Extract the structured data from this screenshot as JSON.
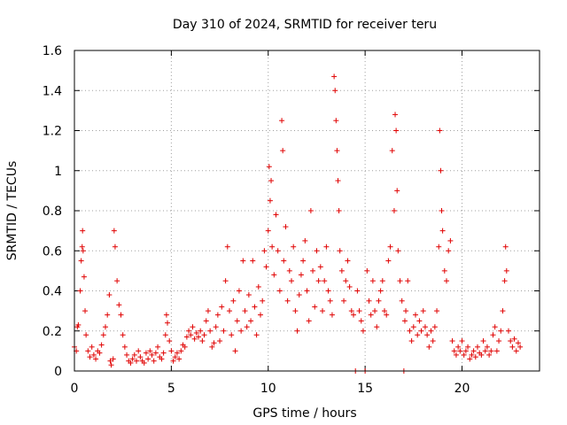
{
  "chart_data": {
    "type": "scatter",
    "title": "Day 310 of 2024, SRMTID for receiver teru",
    "xlabel": "GPS time / hours",
    "ylabel": "SRMTID / TECUs",
    "xlim": [
      0,
      24
    ],
    "ylim": [
      0,
      1.6
    ],
    "grid": true,
    "x_ticks": [
      {
        "value": 0,
        "label": "0"
      },
      {
        "value": 5,
        "label": "5"
      },
      {
        "value": 10,
        "label": "10"
      },
      {
        "value": 15,
        "label": "15"
      },
      {
        "value": 20,
        "label": "20"
      }
    ],
    "y_ticks": [
      {
        "value": 0,
        "label": "0"
      },
      {
        "value": 0.2,
        "label": "0.2"
      },
      {
        "value": 0.4,
        "label": "0.4"
      },
      {
        "value": 0.6,
        "label": "0.6"
      },
      {
        "value": 0.8,
        "label": "0.8"
      },
      {
        "value": 1.0,
        "label": "1"
      },
      {
        "value": 1.2,
        "label": "1.2"
      },
      {
        "value": 1.4,
        "label": "1.4"
      },
      {
        "value": 1.6,
        "label": "1.6"
      }
    ],
    "marker_color": "#e00000",
    "series": [
      {
        "name": "SRMTID",
        "points": [
          [
            0.0,
            0.12
          ],
          [
            0.1,
            0.1
          ],
          [
            0.15,
            0.22
          ],
          [
            0.2,
            0.23
          ],
          [
            0.3,
            0.4
          ],
          [
            0.35,
            0.55
          ],
          [
            0.4,
            0.62
          ],
          [
            0.42,
            0.7
          ],
          [
            0.45,
            0.6
          ],
          [
            0.5,
            0.47
          ],
          [
            0.55,
            0.3
          ],
          [
            0.6,
            0.18
          ],
          [
            0.7,
            0.1
          ],
          [
            0.8,
            0.07
          ],
          [
            0.9,
            0.12
          ],
          [
            1.0,
            0.08
          ],
          [
            1.1,
            0.06
          ],
          [
            1.2,
            0.1
          ],
          [
            1.3,
            0.09
          ],
          [
            1.4,
            0.13
          ],
          [
            1.5,
            0.18
          ],
          [
            1.6,
            0.22
          ],
          [
            1.7,
            0.28
          ],
          [
            1.8,
            0.38
          ],
          [
            1.85,
            0.05
          ],
          [
            1.9,
            0.03
          ],
          [
            2.0,
            0.06
          ],
          [
            2.05,
            0.7
          ],
          [
            2.1,
            0.62
          ],
          [
            2.2,
            0.45
          ],
          [
            2.3,
            0.33
          ],
          [
            2.4,
            0.28
          ],
          [
            2.5,
            0.18
          ],
          [
            2.6,
            0.12
          ],
          [
            2.7,
            0.08
          ],
          [
            2.8,
            0.05
          ],
          [
            2.9,
            0.04
          ],
          [
            3.0,
            0.06
          ],
          [
            3.1,
            0.08
          ],
          [
            3.2,
            0.05
          ],
          [
            3.3,
            0.1
          ],
          [
            3.4,
            0.07
          ],
          [
            3.5,
            0.05
          ],
          [
            3.6,
            0.04
          ],
          [
            3.7,
            0.09
          ],
          [
            3.8,
            0.06
          ],
          [
            3.9,
            0.1
          ],
          [
            4.0,
            0.08
          ],
          [
            4.1,
            0.05
          ],
          [
            4.2,
            0.09
          ],
          [
            4.3,
            0.12
          ],
          [
            4.4,
            0.07
          ],
          [
            4.5,
            0.06
          ],
          [
            4.6,
            0.09
          ],
          [
            4.7,
            0.18
          ],
          [
            4.75,
            0.28
          ],
          [
            4.8,
            0.24
          ],
          [
            4.9,
            0.15
          ],
          [
            5.0,
            0.1
          ],
          [
            5.1,
            0.05
          ],
          [
            5.2,
            0.07
          ],
          [
            5.3,
            0.09
          ],
          [
            5.4,
            0.06
          ],
          [
            5.5,
            0.1
          ],
          [
            5.6,
            0.13
          ],
          [
            5.7,
            0.12
          ],
          [
            5.8,
            0.17
          ],
          [
            5.9,
            0.2
          ],
          [
            6.0,
            0.18
          ],
          [
            6.1,
            0.22
          ],
          [
            6.2,
            0.16
          ],
          [
            6.3,
            0.19
          ],
          [
            6.4,
            0.17
          ],
          [
            6.5,
            0.2
          ],
          [
            6.6,
            0.15
          ],
          [
            6.7,
            0.18
          ],
          [
            6.8,
            0.25
          ],
          [
            6.9,
            0.3
          ],
          [
            7.0,
            0.2
          ],
          [
            7.1,
            0.12
          ],
          [
            7.2,
            0.14
          ],
          [
            7.3,
            0.22
          ],
          [
            7.4,
            0.28
          ],
          [
            7.5,
            0.15
          ],
          [
            7.6,
            0.32
          ],
          [
            7.7,
            0.2
          ],
          [
            7.8,
            0.45
          ],
          [
            7.9,
            0.62
          ],
          [
            8.0,
            0.3
          ],
          [
            8.1,
            0.18
          ],
          [
            8.2,
            0.35
          ],
          [
            8.3,
            0.1
          ],
          [
            8.4,
            0.25
          ],
          [
            8.5,
            0.4
          ],
          [
            8.6,
            0.2
          ],
          [
            8.7,
            0.55
          ],
          [
            8.8,
            0.3
          ],
          [
            8.9,
            0.22
          ],
          [
            9.0,
            0.38
          ],
          [
            9.1,
            0.25
          ],
          [
            9.2,
            0.55
          ],
          [
            9.3,
            0.32
          ],
          [
            9.4,
            0.18
          ],
          [
            9.5,
            0.42
          ],
          [
            9.6,
            0.28
          ],
          [
            9.7,
            0.35
          ],
          [
            9.8,
            0.6
          ],
          [
            9.9,
            0.52
          ],
          [
            10.0,
            0.7
          ],
          [
            10.05,
            1.02
          ],
          [
            10.1,
            0.85
          ],
          [
            10.15,
            0.95
          ],
          [
            10.2,
            0.62
          ],
          [
            10.3,
            0.48
          ],
          [
            10.4,
            0.78
          ],
          [
            10.5,
            0.6
          ],
          [
            10.6,
            0.4
          ],
          [
            10.7,
            1.25
          ],
          [
            10.75,
            1.1
          ],
          [
            10.8,
            0.55
          ],
          [
            10.9,
            0.72
          ],
          [
            11.0,
            0.35
          ],
          [
            11.1,
            0.5
          ],
          [
            11.2,
            0.45
          ],
          [
            11.3,
            0.62
          ],
          [
            11.4,
            0.3
          ],
          [
            11.5,
            0.2
          ],
          [
            11.6,
            0.38
          ],
          [
            11.7,
            0.48
          ],
          [
            11.8,
            0.55
          ],
          [
            11.9,
            0.65
          ],
          [
            12.0,
            0.4
          ],
          [
            12.1,
            0.25
          ],
          [
            12.2,
            0.8
          ],
          [
            12.3,
            0.5
          ],
          [
            12.4,
            0.32
          ],
          [
            12.5,
            0.6
          ],
          [
            12.6,
            0.45
          ],
          [
            12.7,
            0.52
          ],
          [
            12.8,
            0.3
          ],
          [
            12.9,
            0.45
          ],
          [
            13.0,
            0.62
          ],
          [
            13.1,
            0.4
          ],
          [
            13.2,
            0.35
          ],
          [
            13.3,
            0.28
          ],
          [
            13.4,
            1.47
          ],
          [
            13.45,
            1.4
          ],
          [
            13.5,
            1.25
          ],
          [
            13.55,
            1.1
          ],
          [
            13.6,
            0.95
          ],
          [
            13.65,
            0.8
          ],
          [
            13.7,
            0.6
          ],
          [
            13.8,
            0.5
          ],
          [
            13.9,
            0.35
          ],
          [
            14.0,
            0.45
          ],
          [
            14.1,
            0.55
          ],
          [
            14.2,
            0.42
          ],
          [
            14.3,
            0.3
          ],
          [
            14.4,
            0.28
          ],
          [
            14.5,
            0.0
          ],
          [
            14.6,
            0.4
          ],
          [
            14.7,
            0.3
          ],
          [
            14.8,
            0.25
          ],
          [
            14.9,
            0.2
          ],
          [
            15.0,
            0.0
          ],
          [
            15.1,
            0.5
          ],
          [
            15.2,
            0.35
          ],
          [
            15.3,
            0.28
          ],
          [
            15.4,
            0.45
          ],
          [
            15.5,
            0.3
          ],
          [
            15.6,
            0.22
          ],
          [
            15.7,
            0.35
          ],
          [
            15.8,
            0.4
          ],
          [
            15.9,
            0.45
          ],
          [
            16.0,
            0.3
          ],
          [
            16.1,
            0.28
          ],
          [
            16.2,
            0.55
          ],
          [
            16.3,
            0.62
          ],
          [
            16.4,
            1.1
          ],
          [
            16.5,
            0.8
          ],
          [
            16.55,
            1.28
          ],
          [
            16.6,
            1.2
          ],
          [
            16.65,
            0.9
          ],
          [
            16.7,
            0.6
          ],
          [
            16.8,
            0.45
          ],
          [
            16.9,
            0.35
          ],
          [
            17.0,
            0.0
          ],
          [
            17.05,
            0.25
          ],
          [
            17.1,
            0.3
          ],
          [
            17.2,
            0.45
          ],
          [
            17.3,
            0.2
          ],
          [
            17.4,
            0.15
          ],
          [
            17.5,
            0.22
          ],
          [
            17.6,
            0.28
          ],
          [
            17.7,
            0.18
          ],
          [
            17.8,
            0.25
          ],
          [
            17.9,
            0.2
          ],
          [
            18.0,
            0.3
          ],
          [
            18.1,
            0.22
          ],
          [
            18.2,
            0.18
          ],
          [
            18.3,
            0.12
          ],
          [
            18.4,
            0.2
          ],
          [
            18.5,
            0.15
          ],
          [
            18.6,
            0.22
          ],
          [
            18.7,
            0.3
          ],
          [
            18.8,
            0.62
          ],
          [
            18.85,
            1.2
          ],
          [
            18.9,
            1.0
          ],
          [
            18.95,
            0.8
          ],
          [
            19.0,
            0.7
          ],
          [
            19.1,
            0.5
          ],
          [
            19.2,
            0.45
          ],
          [
            19.3,
            0.6
          ],
          [
            19.4,
            0.65
          ],
          [
            19.5,
            0.15
          ],
          [
            19.6,
            0.1
          ],
          [
            19.7,
            0.08
          ],
          [
            19.8,
            0.12
          ],
          [
            19.9,
            0.1
          ],
          [
            20.0,
            0.15
          ],
          [
            20.1,
            0.08
          ],
          [
            20.2,
            0.1
          ],
          [
            20.3,
            0.12
          ],
          [
            20.4,
            0.06
          ],
          [
            20.5,
            0.08
          ],
          [
            20.6,
            0.1
          ],
          [
            20.7,
            0.07
          ],
          [
            20.8,
            0.12
          ],
          [
            20.9,
            0.09
          ],
          [
            21.0,
            0.08
          ],
          [
            21.1,
            0.15
          ],
          [
            21.2,
            0.1
          ],
          [
            21.3,
            0.12
          ],
          [
            21.4,
            0.08
          ],
          [
            21.5,
            0.1
          ],
          [
            21.6,
            0.18
          ],
          [
            21.7,
            0.22
          ],
          [
            21.8,
            0.1
          ],
          [
            21.9,
            0.15
          ],
          [
            22.0,
            0.2
          ],
          [
            22.1,
            0.3
          ],
          [
            22.2,
            0.45
          ],
          [
            22.25,
            0.62
          ],
          [
            22.3,
            0.5
          ],
          [
            22.4,
            0.2
          ],
          [
            22.5,
            0.15
          ],
          [
            22.6,
            0.12
          ],
          [
            22.7,
            0.16
          ],
          [
            22.8,
            0.1
          ],
          [
            22.9,
            0.14
          ],
          [
            23.0,
            0.12
          ]
        ]
      }
    ]
  }
}
